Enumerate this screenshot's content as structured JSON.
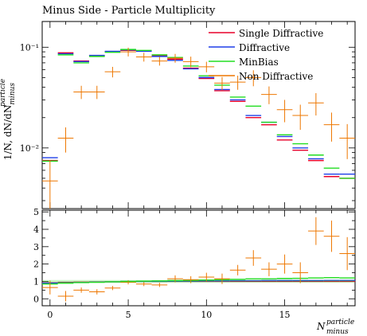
{
  "chart_data": {
    "type": "line",
    "title": "Minus Side - Particle Multiplicity",
    "ylabel_html": "1/N, dN/dN",
    "ylabel_sup": "particle",
    "ylabel_sub": "minus",
    "xlabel": "N",
    "xlabel_sup": "particle",
    "xlabel_sub": "minus",
    "x": [
      0,
      1,
      2,
      3,
      4,
      5,
      6,
      7,
      8,
      9,
      10,
      11,
      12,
      13,
      14,
      15,
      16,
      17,
      18,
      19
    ],
    "main_panel": {
      "yscale": "log",
      "ylim": [
        0.0025,
        0.18
      ],
      "y_tick_labels": [
        "10⁻²",
        "10⁻¹"
      ]
    },
    "ratio_panel": {
      "ylim": [
        -0.4,
        5.1
      ],
      "y_tick_labels": [
        "0",
        "1",
        "2",
        "3",
        "4",
        "5"
      ]
    },
    "xlim": [
      -0.5,
      19.5
    ],
    "x_tick_labels": [
      "0",
      "5",
      "10",
      "15"
    ],
    "legend_position": "top-right",
    "series": [
      {
        "name": "Single Diffractive",
        "color": "#e8002a",
        "style": "hist",
        "values": [
          0.0075,
          0.088,
          0.073,
          0.082,
          0.09,
          0.093,
          0.092,
          0.082,
          0.076,
          0.062,
          0.049,
          0.037,
          0.029,
          0.02,
          0.017,
          0.012,
          0.0095,
          0.0075,
          0.0052,
          0.005
        ],
        "ratio": [
          0.92,
          0.95,
          0.96,
          0.97,
          0.98,
          0.99,
          1.0,
          1.0,
          1.0,
          1.0,
          1.0,
          1.0,
          1.0,
          1.0,
          1.0,
          1.0,
          1.0,
          1.0,
          1.0,
          1.0
        ]
      },
      {
        "name": "Diffractive",
        "color": "#1f3fe8",
        "style": "hist",
        "values": [
          0.008,
          0.086,
          0.072,
          0.083,
          0.091,
          0.094,
          0.091,
          0.081,
          0.074,
          0.061,
          0.05,
          0.038,
          0.03,
          0.021,
          0.018,
          0.013,
          0.01,
          0.0078,
          0.0055,
          0.0055
        ],
        "ratio": [
          0.9,
          0.92,
          0.94,
          0.96,
          0.98,
          1.0,
          1.0,
          1.0,
          1.01,
          1.02,
          1.03,
          1.03,
          1.04,
          1.04,
          1.05,
          1.05,
          1.05,
          1.05,
          1.06,
          1.06
        ]
      },
      {
        "name": "MinBias",
        "color": "#22dd22",
        "style": "hist",
        "values": [
          0.0074,
          0.084,
          0.07,
          0.081,
          0.089,
          0.095,
          0.093,
          0.084,
          0.079,
          0.065,
          0.052,
          0.042,
          0.032,
          0.026,
          0.018,
          0.0135,
          0.011,
          0.0085,
          0.0063,
          0.005
        ],
        "ratio": [
          0.85,
          0.9,
          0.93,
          0.95,
          0.98,
          1.0,
          1.02,
          1.03,
          1.05,
          1.06,
          1.08,
          1.1,
          1.12,
          1.15,
          1.15,
          1.17,
          1.18,
          1.2,
          1.22,
          1.2
        ]
      },
      {
        "name": "Non Diffractive",
        "color": "#ee7700",
        "style": "points",
        "values": [
          0.0047,
          0.0125,
          0.036,
          0.036,
          0.057,
          0.09,
          0.08,
          0.073,
          0.078,
          0.072,
          0.064,
          0.044,
          0.045,
          0.05,
          0.034,
          0.024,
          0.021,
          0.028,
          0.017,
          0.0125
        ],
        "yerr_frac": [
          0.6,
          0.28,
          0.15,
          0.15,
          0.12,
          0.1,
          0.1,
          0.1,
          0.1,
          0.12,
          0.12,
          0.15,
          0.16,
          0.18,
          0.2,
          0.25,
          0.28,
          0.25,
          0.32,
          0.38
        ],
        "ratio": [
          0.65,
          0.15,
          0.5,
          0.4,
          0.62,
          0.95,
          0.85,
          0.8,
          1.15,
          1.1,
          1.25,
          1.15,
          1.65,
          2.35,
          1.7,
          2.0,
          1.5,
          3.9,
          3.6,
          2.6
        ],
        "ratio_err": [
          0.4,
          0.3,
          0.15,
          0.15,
          0.12,
          0.12,
          0.12,
          0.12,
          0.2,
          0.2,
          0.25,
          0.3,
          0.3,
          0.45,
          0.4,
          0.55,
          0.6,
          0.8,
          0.9,
          0.95
        ]
      }
    ]
  }
}
